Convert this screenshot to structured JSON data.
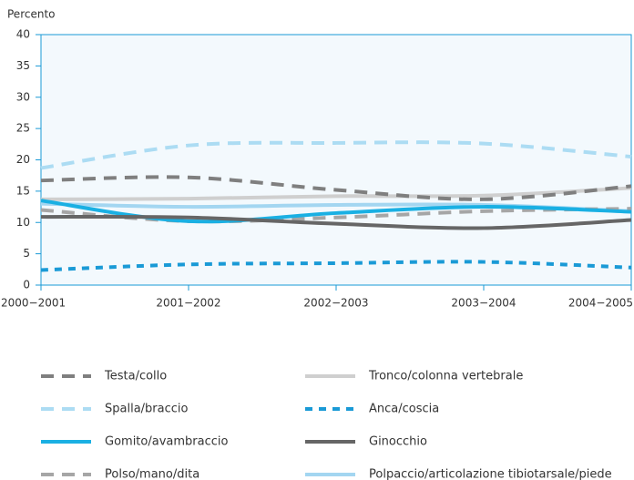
{
  "chart_data": {
    "type": "line",
    "y_label": "Percento",
    "categories": [
      "2000−2001",
      "2001−2002",
      "2002−2003",
      "2003−2004",
      "2004−2005"
    ],
    "ylim": [
      0,
      40
    ],
    "yticks": [
      0,
      5,
      10,
      15,
      20,
      25,
      30,
      35,
      40
    ],
    "series": [
      {
        "name": "Testa/collo",
        "color": "#7f7f7f",
        "dash": "dashed",
        "values": [
          16.7,
          17.2,
          15.2,
          13.7,
          15.8
        ]
      },
      {
        "name": "Tronco/colonna vertebrale",
        "color": "#cfcfcf",
        "dash": "solid",
        "values": [
          13.7,
          13.8,
          14.2,
          14.3,
          15.5
        ]
      },
      {
        "name": "Spalla/braccio",
        "color": "#acdcf3",
        "dash": "dashed",
        "values": [
          18.7,
          22.3,
          22.7,
          22.6,
          20.5
        ]
      },
      {
        "name": "Anca/coscia",
        "color": "#1a9ad6",
        "dash": "dotted",
        "values": [
          2.4,
          3.3,
          3.5,
          3.7,
          2.8
        ]
      },
      {
        "name": "Gomito/avambraccio",
        "color": "#1ab0e3",
        "dash": "solid",
        "values": [
          13.5,
          10.2,
          11.5,
          12.5,
          11.7
        ]
      },
      {
        "name": "Ginocchio",
        "color": "#666666",
        "dash": "solid",
        "values": [
          10.9,
          10.8,
          9.8,
          9.1,
          10.4
        ]
      },
      {
        "name": "Polso/mano/dita",
        "color": "#a6a6a6",
        "dash": "dashed",
        "values": [
          12.0,
          10.2,
          10.8,
          11.8,
          12.2
        ]
      },
      {
        "name": "Polpaccio/articolazione tibiotarsale/piede",
        "color": "#a3d6f1",
        "dash": "solid",
        "values": [
          13.0,
          12.5,
          12.8,
          12.8,
          11.8
        ]
      }
    ]
  }
}
